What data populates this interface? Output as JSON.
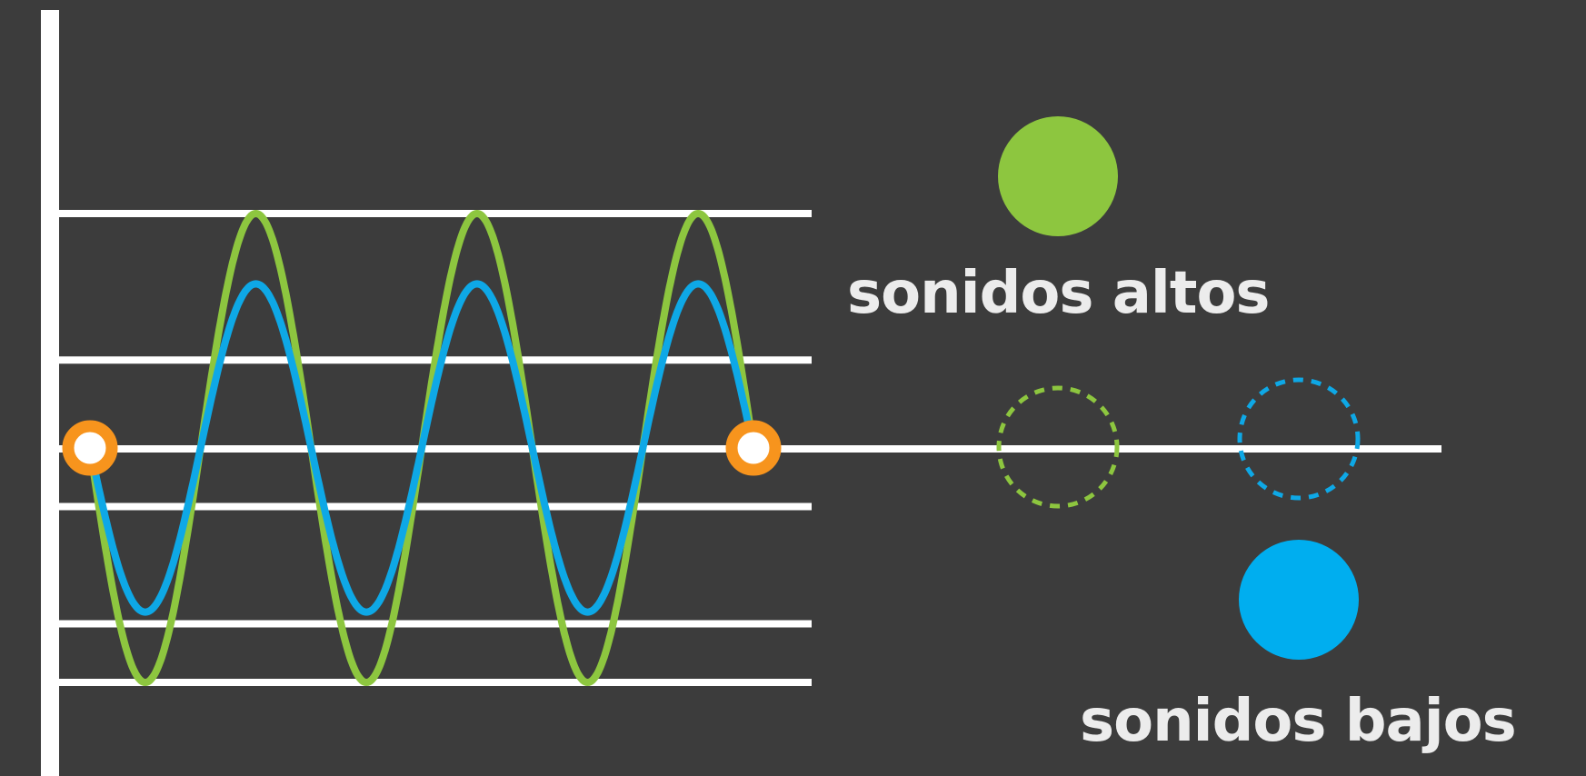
{
  "labels": {
    "high": "sonidos altos",
    "low": "sonidos bajos"
  },
  "waves": [
    {
      "name": "",
      "color": "#8dc63f",
      "cycles": 3,
      "amplitude": 4,
      "shape": "sine",
      "phase": "down-first"
    },
    {
      "name": "",
      "color": "#0ea8e6",
      "cycles": 3,
      "amplitude": 2.8,
      "shape": "sine",
      "phase": "down-first"
    }
  ],
  "levels": [
    4,
    1.5,
    -1,
    -3,
    -4
  ],
  "colors": {
    "background": "#3c3c3c",
    "axis": "#ffffff",
    "high_wave": "#8dc63f",
    "low_wave": "#0ea8e6",
    "endpoint": "#f7941d"
  },
  "legend": {
    "high_solid_color": "#8dc63f",
    "high_dashed_color": "#8dc63f",
    "low_dashed_color": "#0ea8e6",
    "low_solid_color": "#0ea8e6"
  }
}
